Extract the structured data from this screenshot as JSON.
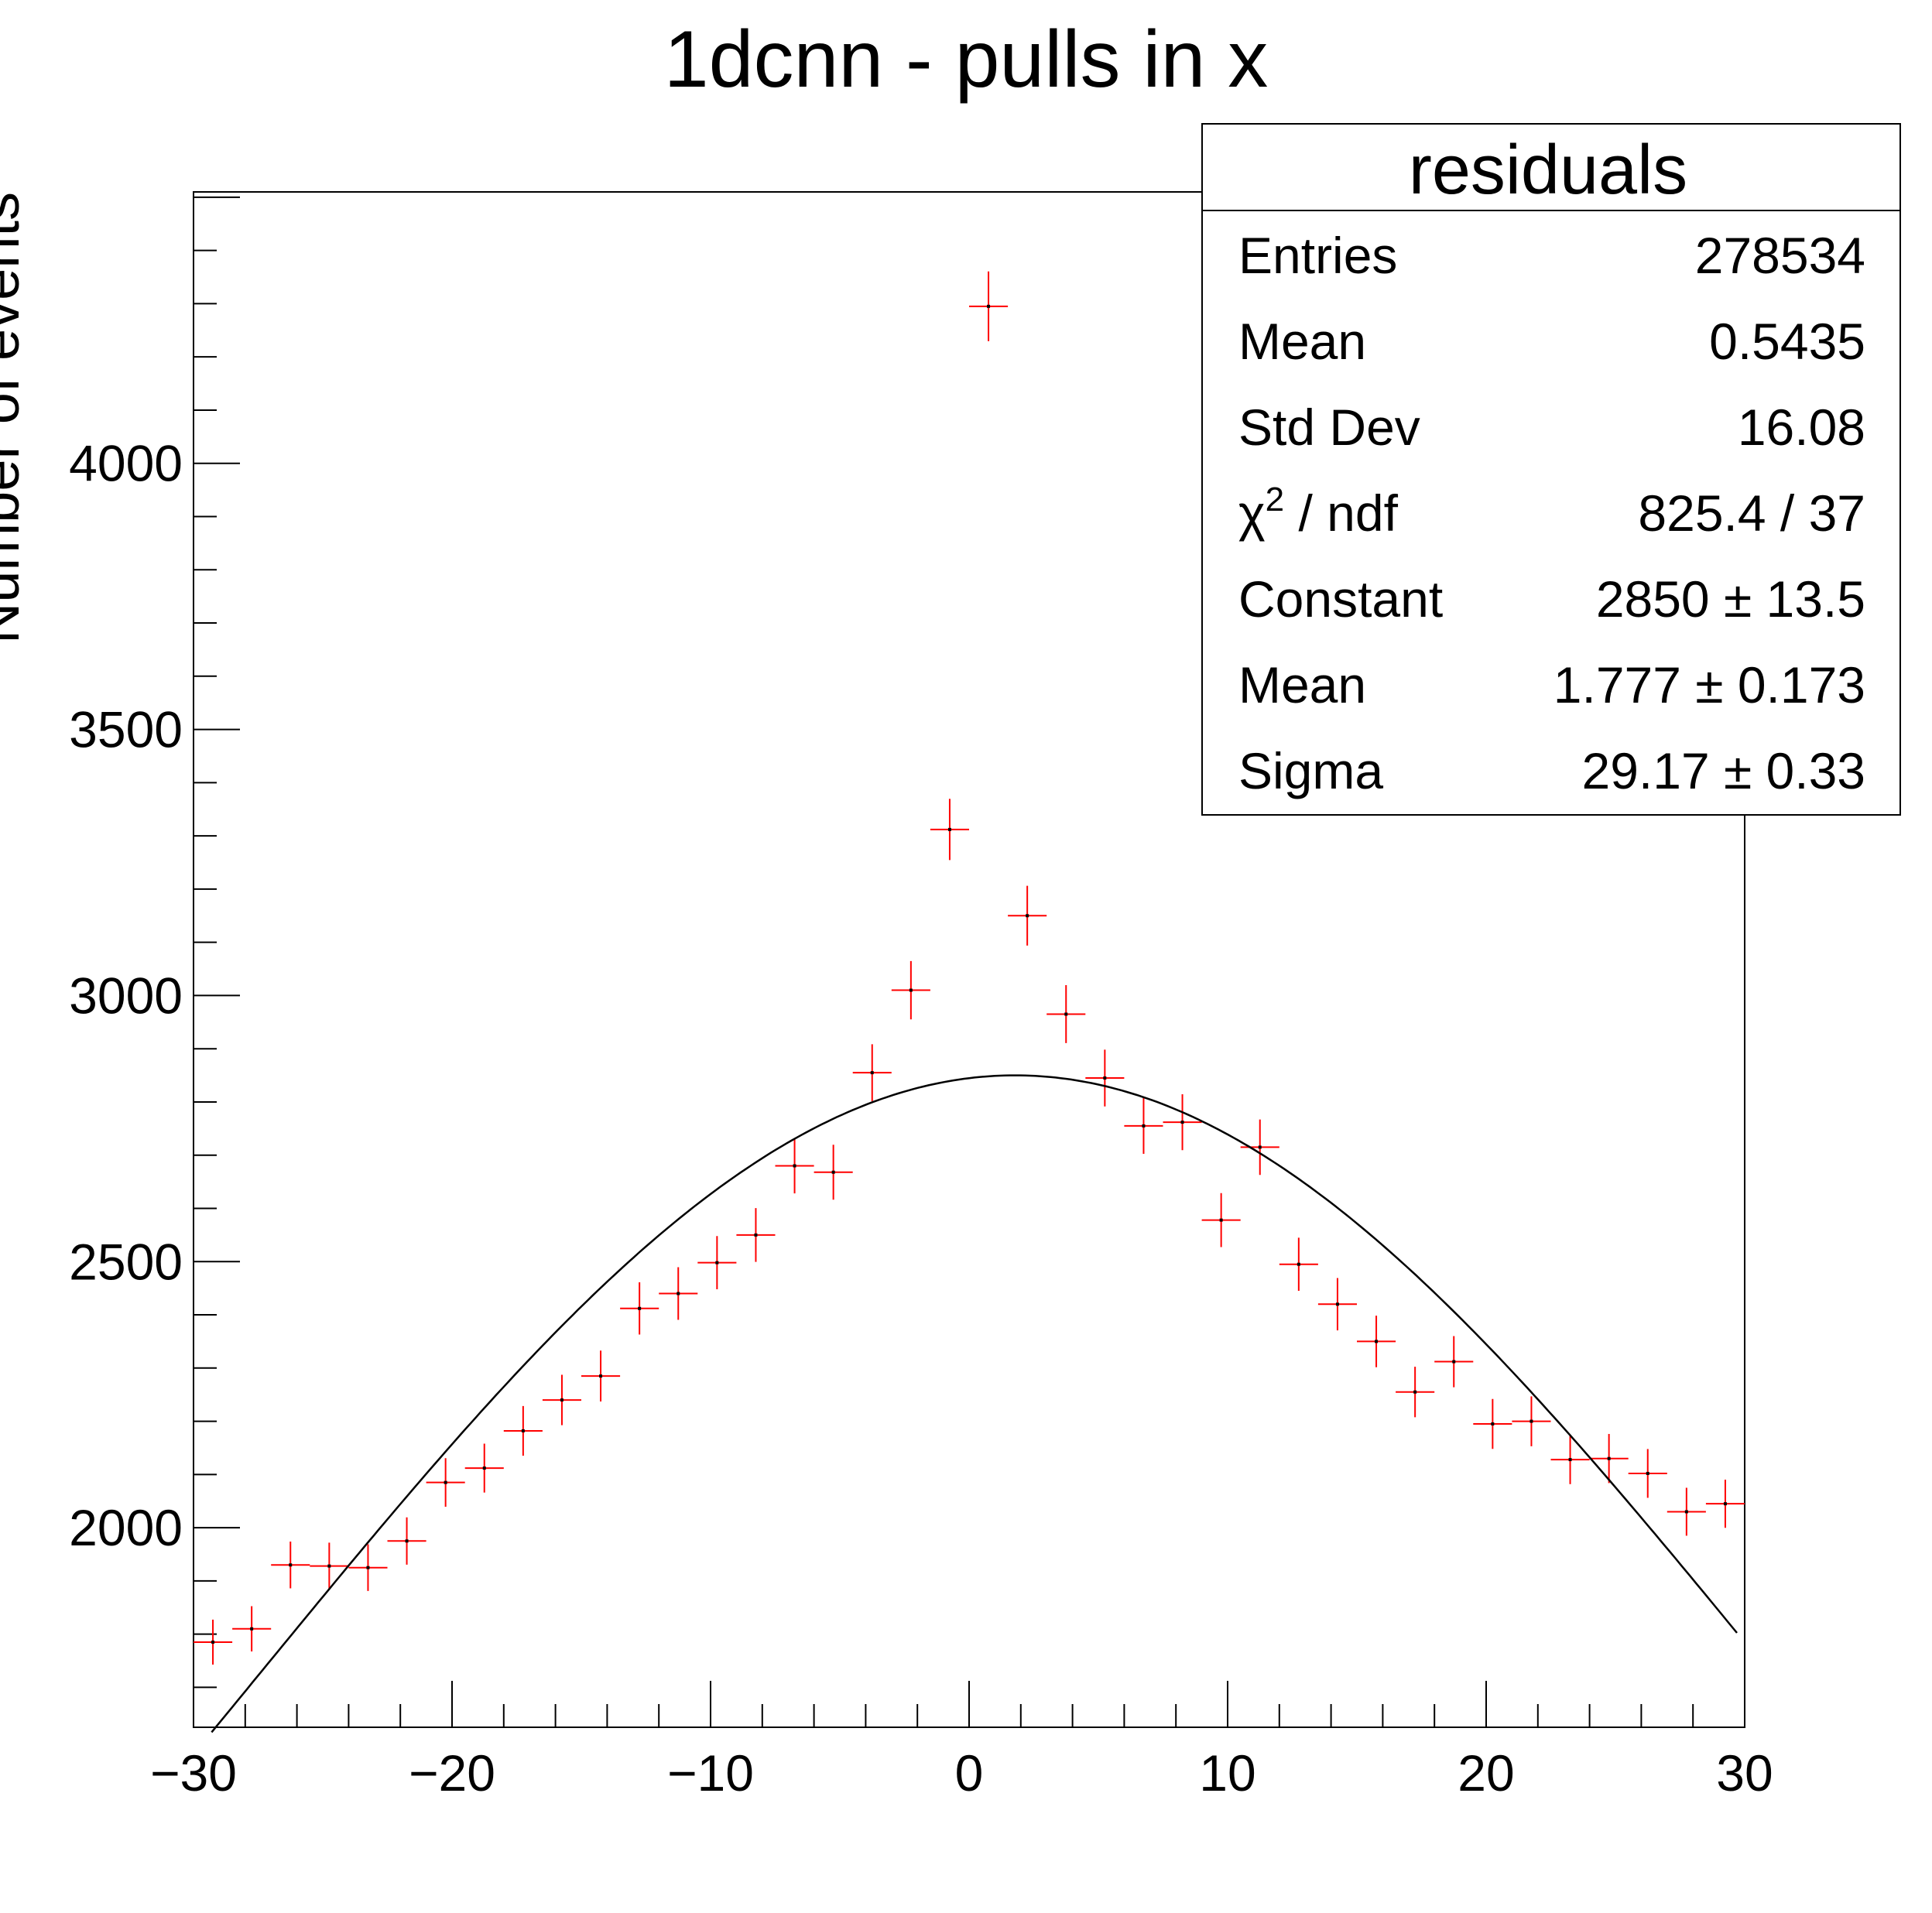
{
  "chart_data": {
    "type": "scatter",
    "title": "1dcnn - pulls in x",
    "xlabel": "",
    "ylabel": "Number of events",
    "xlim": [
      -30,
      30
    ],
    "ylim": [
      1625,
      4510
    ],
    "x_ticks": [
      -30,
      -20,
      -10,
      0,
      10,
      20,
      30
    ],
    "x_tick_labels": [
      "−30",
      "−20",
      "−10",
      "0",
      "10",
      "20",
      "30"
    ],
    "y_ticks": [
      2000,
      2500,
      3000,
      3500,
      4000
    ],
    "y_tick_labels": [
      "2000",
      "2500",
      "3000",
      "3500",
      "4000"
    ],
    "grid": false,
    "marker_color": "#ff0000",
    "fit_color": "#000000",
    "series": [
      {
        "x": [
          -29.25,
          -27.75,
          -26.25,
          -24.75,
          -23.25,
          -21.75,
          -20.25,
          -18.75,
          -17.25,
          -15.75,
          -14.25,
          -12.75,
          -11.25,
          -9.75,
          -8.25,
          -6.75,
          -5.25,
          -3.75,
          -2.25,
          -0.75,
          0.75,
          2.25,
          3.75,
          5.25,
          6.75,
          8.25,
          9.75,
          11.25,
          12.75,
          14.25,
          15.75,
          17.25,
          18.75,
          20.25,
          21.75,
          23.25,
          24.75,
          26.25,
          27.75,
          29.25
        ],
        "y": [
          1785,
          1810,
          1930,
          1928,
          1925,
          1975,
          2085,
          2112,
          2182,
          2240,
          2285,
          2412,
          2440,
          2498,
          2550,
          2680,
          2668,
          2855,
          3010,
          3312,
          4295,
          3150,
          2965,
          2845,
          2755,
          2762,
          2578,
          2715,
          2495,
          2420,
          2350,
          2255,
          2312,
          2195,
          2200,
          2128,
          2130,
          2102,
          2030,
          2045
        ],
        "xerr": 0.75
      }
    ],
    "fit": {
      "function": "gaus",
      "range": [
        -29.3,
        29.7
      ]
    },
    "stats_box": {
      "title": "residuals",
      "rows": [
        {
          "label": "Entries",
          "value": "278534"
        },
        {
          "label": "Mean",
          "value": "0.5435"
        },
        {
          "label": "Std Dev",
          "value": "16.08"
        },
        {
          "label": "χ² / ndf",
          "value": "825.4 / 37"
        },
        {
          "label": "Constant",
          "value": "2850 ± 13.5"
        },
        {
          "label": "Mean",
          "value": "1.777 ± 0.173"
        },
        {
          "label": "Sigma",
          "value": "29.17 ± 0.33"
        }
      ],
      "constant": 2850,
      "mean": 1.777,
      "sigma": 29.17
    }
  }
}
